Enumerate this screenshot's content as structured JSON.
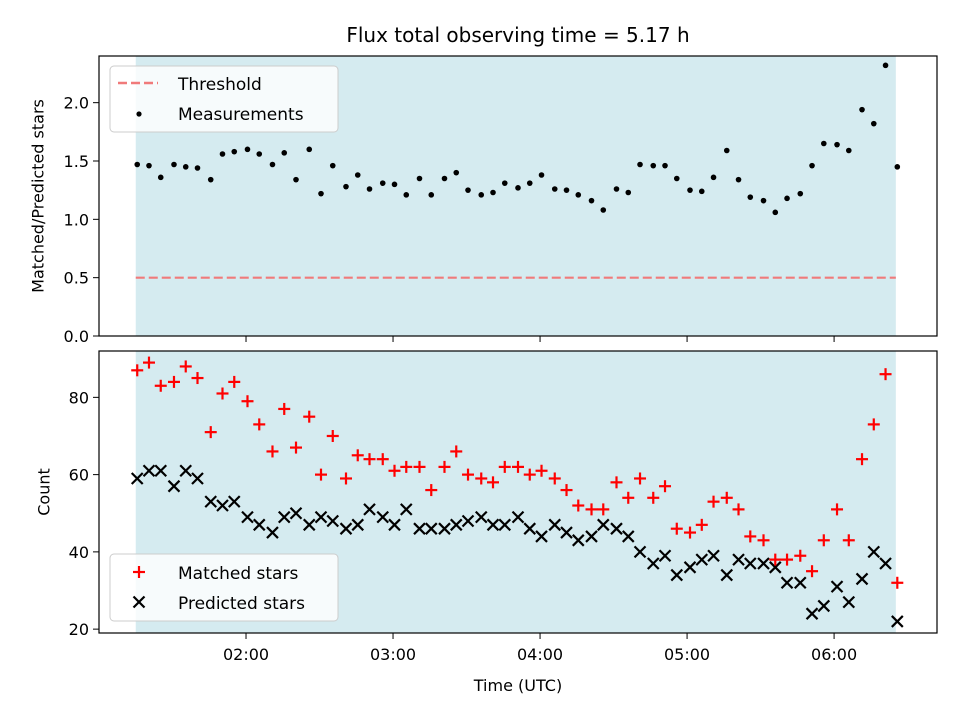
{
  "chart_data": [
    {
      "type": "scatter",
      "title": "Flux total observing time = 5.17 h",
      "ylabel": "Matched/Predicted stars",
      "xlim_hours": [
        1.0,
        6.7
      ],
      "ylim": [
        0.0,
        2.4
      ],
      "yticks": [
        0.0,
        0.5,
        1.0,
        1.5,
        2.0
      ],
      "ytick_labels": [
        "0.0",
        "0.5",
        "1.0",
        "1.5",
        "2.0"
      ],
      "shaded_span_hours": [
        1.25,
        6.42
      ],
      "shade_color": "#d5ebf0",
      "legend_position": "upper-left",
      "threshold": {
        "name": "Threshold",
        "value": 0.5,
        "color": "#f07a7a"
      },
      "series": [
        {
          "name": "Measurements",
          "color": "#000000",
          "marker": "dot",
          "x": [
            1.26,
            1.34,
            1.42,
            1.51,
            1.59,
            1.67,
            1.76,
            1.84,
            1.92,
            2.01,
            2.09,
            2.18,
            2.26,
            2.34,
            2.43,
            2.51,
            2.59,
            2.68,
            2.76,
            2.84,
            2.93,
            3.01,
            3.09,
            3.18,
            3.26,
            3.35,
            3.43,
            3.51,
            3.6,
            3.68,
            3.76,
            3.85,
            3.93,
            4.01,
            4.1,
            4.18,
            4.26,
            4.35,
            4.43,
            4.52,
            4.6,
            4.68,
            4.77,
            4.85,
            4.93,
            5.02,
            5.1,
            5.18,
            5.27,
            5.35,
            5.43,
            5.52,
            5.6,
            5.68,
            5.77,
            5.85,
            5.93,
            6.02,
            6.1,
            6.19,
            6.27,
            6.35,
            6.43
          ],
          "y": [
            1.47,
            1.46,
            1.36,
            1.47,
            1.45,
            1.44,
            1.34,
            1.56,
            1.58,
            1.6,
            1.56,
            1.47,
            1.57,
            1.34,
            1.6,
            1.22,
            1.46,
            1.28,
            1.38,
            1.26,
            1.31,
            1.3,
            1.21,
            1.35,
            1.21,
            1.35,
            1.4,
            1.25,
            1.21,
            1.23,
            1.31,
            1.27,
            1.31,
            1.38,
            1.26,
            1.25,
            1.21,
            1.16,
            1.08,
            1.26,
            1.23,
            1.47,
            1.46,
            1.46,
            1.35,
            1.25,
            1.24,
            1.36,
            1.59,
            1.34,
            1.19,
            1.16,
            1.06,
            1.18,
            1.22,
            1.46,
            1.65,
            1.64,
            1.59,
            1.94,
            1.82,
            2.32,
            1.45
          ]
        }
      ]
    },
    {
      "type": "scatter",
      "ylabel": "Count",
      "xlabel": "Time (UTC)",
      "xlim_hours": [
        1.0,
        6.7
      ],
      "ylim": [
        19,
        92
      ],
      "yticks": [
        20,
        40,
        60,
        80
      ],
      "ytick_labels": [
        "20",
        "40",
        "60",
        "80"
      ],
      "xticks_hours": [
        2,
        3,
        4,
        5,
        6
      ],
      "xtick_labels": [
        "02:00",
        "03:00",
        "04:00",
        "05:00",
        "06:00"
      ],
      "shaded_span_hours": [
        1.25,
        6.42
      ],
      "shade_color": "#d5ebf0",
      "legend_position": "lower-left",
      "series": [
        {
          "name": "Matched stars",
          "color": "#ff0000",
          "marker": "plus",
          "x": [
            1.26,
            1.34,
            1.42,
            1.51,
            1.59,
            1.67,
            1.76,
            1.84,
            1.92,
            2.01,
            2.09,
            2.18,
            2.26,
            2.34,
            2.43,
            2.51,
            2.59,
            2.68,
            2.76,
            2.84,
            2.93,
            3.01,
            3.09,
            3.18,
            3.26,
            3.35,
            3.43,
            3.51,
            3.6,
            3.68,
            3.76,
            3.85,
            3.93,
            4.01,
            4.1,
            4.18,
            4.26,
            4.35,
            4.43,
            4.52,
            4.6,
            4.68,
            4.77,
            4.85,
            4.93,
            5.02,
            5.1,
            5.18,
            5.27,
            5.35,
            5.43,
            5.52,
            5.6,
            5.68,
            5.77,
            5.85,
            5.93,
            6.02,
            6.1,
            6.19,
            6.27,
            6.35,
            6.43
          ],
          "y": [
            87,
            89,
            83,
            84,
            88,
            85,
            71,
            81,
            84,
            79,
            73,
            66,
            77,
            67,
            75,
            60,
            70,
            59,
            65,
            64,
            64,
            61,
            62,
            62,
            56,
            62,
            66,
            60,
            59,
            58,
            62,
            62,
            60,
            61,
            59,
            56,
            52,
            51,
            51,
            58,
            54,
            59,
            54,
            57,
            46,
            45,
            47,
            53,
            54,
            51,
            44,
            43,
            38,
            38,
            39,
            35,
            43,
            51,
            43,
            64,
            73,
            86,
            32
          ]
        },
        {
          "name": "Predicted stars",
          "color": "#000000",
          "marker": "x",
          "x": [
            1.26,
            1.34,
            1.42,
            1.51,
            1.59,
            1.67,
            1.76,
            1.84,
            1.92,
            2.01,
            2.09,
            2.18,
            2.26,
            2.34,
            2.43,
            2.51,
            2.59,
            2.68,
            2.76,
            2.84,
            2.93,
            3.01,
            3.09,
            3.18,
            3.26,
            3.35,
            3.43,
            3.51,
            3.6,
            3.68,
            3.76,
            3.85,
            3.93,
            4.01,
            4.1,
            4.18,
            4.26,
            4.35,
            4.43,
            4.52,
            4.6,
            4.68,
            4.77,
            4.85,
            4.93,
            5.02,
            5.1,
            5.18,
            5.27,
            5.35,
            5.43,
            5.52,
            5.6,
            5.68,
            5.77,
            5.85,
            5.93,
            6.02,
            6.1,
            6.19,
            6.27,
            6.35,
            6.43
          ],
          "y": [
            59,
            61,
            61,
            57,
            61,
            59,
            53,
            52,
            53,
            49,
            47,
            45,
            49,
            50,
            47,
            49,
            48,
            46,
            47,
            51,
            49,
            47,
            51,
            46,
            46,
            46,
            47,
            48,
            49,
            47,
            47,
            49,
            46,
            44,
            47,
            45,
            43,
            44,
            47,
            46,
            44,
            40,
            37,
            39,
            34,
            36,
            38,
            39,
            34,
            38,
            37,
            37,
            36,
            32,
            32,
            24,
            26,
            31,
            27,
            33,
            40,
            37,
            22
          ]
        }
      ]
    }
  ]
}
